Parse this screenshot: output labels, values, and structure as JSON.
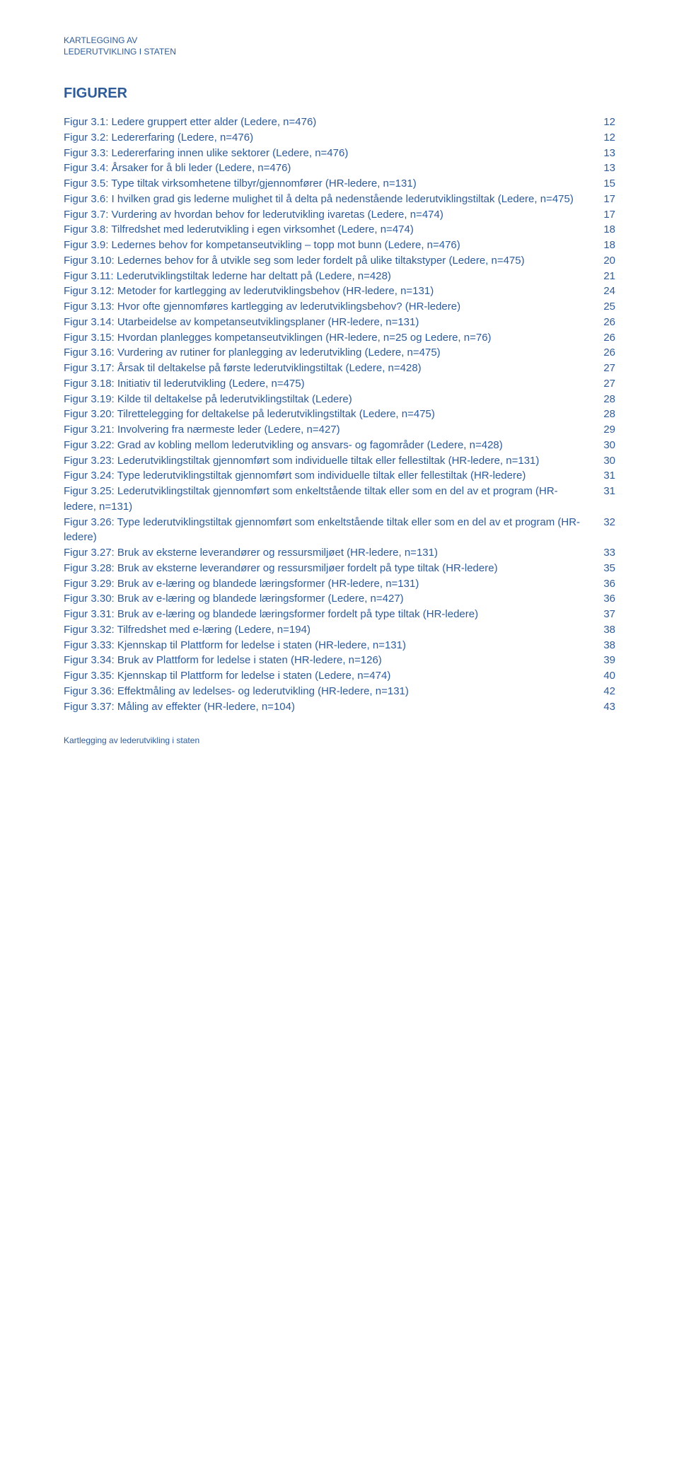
{
  "header": {
    "line1": "KARTLEGGING AV",
    "line2": "LEDERUTVIKLING I STATEN"
  },
  "title": "FIGURER",
  "entries": [
    {
      "text": "Figur 3.1: Ledere gruppert etter alder (Ledere, n=476)",
      "page": "12"
    },
    {
      "text": "Figur 3.2: Ledererfaring (Ledere, n=476)",
      "page": "12"
    },
    {
      "text": "Figur 3.3: Ledererfaring innen ulike sektorer (Ledere, n=476)",
      "page": "13"
    },
    {
      "text": "Figur 3.4: Årsaker for å bli leder (Ledere, n=476)",
      "page": "13"
    },
    {
      "text": "Figur 3.5: Type tiltak virksomhetene tilbyr/gjennomfører (HR-ledere, n=131)",
      "page": "15"
    },
    {
      "text": "Figur 3.6: I hvilken grad gis lederne mulighet til å delta på nedenstående lederutviklingstiltak (Ledere, n=475)",
      "page": "17"
    },
    {
      "text": "Figur 3.7: Vurdering av hvordan behov for lederutvikling ivaretas (Ledere, n=474)",
      "page": "17"
    },
    {
      "text": "Figur 3.8: Tilfredshet med lederutvikling i egen virksomhet (Ledere, n=474)",
      "page": "18"
    },
    {
      "text": "Figur 3.9: Ledernes behov for kompetanseutvikling – topp mot bunn (Ledere, n=476)",
      "page": "18"
    },
    {
      "text": "Figur 3.10: Ledernes behov for å utvikle seg som leder fordelt på ulike tiltakstyper (Ledere, n=475)",
      "page": "20"
    },
    {
      "text": "Figur 3.11: Lederutviklingstiltak lederne har deltatt på (Ledere, n=428)",
      "page": "21"
    },
    {
      "text": "Figur 3.12: Metoder for kartlegging av lederutviklingsbehov (HR-ledere, n=131)",
      "page": "24"
    },
    {
      "text": "Figur 3.13: Hvor ofte gjennomføres kartlegging av lederutviklingsbehov? (HR-ledere)",
      "page": "25"
    },
    {
      "text": "Figur 3.14: Utarbeidelse av kompetanseutviklingsplaner (HR-ledere, n=131)",
      "page": "26"
    },
    {
      "text": "Figur 3.15: Hvordan planlegges kompetanseutviklingen (HR-ledere, n=25 og Ledere, n=76)",
      "page": "26"
    },
    {
      "text": "Figur 3.16: Vurdering av rutiner for planlegging av lederutvikling (Ledere, n=475)",
      "page": "26"
    },
    {
      "text": "Figur 3.17: Årsak til deltakelse på første lederutviklingstiltak (Ledere, n=428)",
      "page": "27"
    },
    {
      "text": "Figur 3.18: Initiativ til lederutvikling (Ledere, n=475)",
      "page": "27"
    },
    {
      "text": "Figur 3.19: Kilde til deltakelse på lederutviklingstiltak (Ledere)",
      "page": "28"
    },
    {
      "text": "Figur 3.20: Tilrettelegging for deltakelse på lederutviklingstiltak (Ledere, n=475)",
      "page": "28"
    },
    {
      "text": "Figur 3.21: Involvering fra nærmeste leder (Ledere, n=427)",
      "page": "29"
    },
    {
      "text": "Figur 3.22: Grad av kobling mellom lederutvikling og ansvars- og fagområder (Ledere, n=428)",
      "page": "30"
    },
    {
      "text": "Figur 3.23: Lederutviklingstiltak gjennomført som individuelle tiltak eller fellestiltak (HR-ledere, n=131)",
      "page": "30"
    },
    {
      "text": "Figur 3.24: Type lederutviklingstiltak gjennomført som individuelle tiltak eller fellestiltak (HR-ledere)",
      "page": "31"
    },
    {
      "text": "Figur 3.25: Lederutviklingstiltak gjennomført som enkeltstående tiltak eller som en del av et program (HR-ledere, n=131)",
      "page": "31"
    },
    {
      "text": "Figur 3.26: Type lederutviklingstiltak gjennomført som enkeltstående tiltak eller som en del av et program (HR-ledere)",
      "page": "32"
    },
    {
      "text": "Figur 3.27: Bruk av eksterne leverandører og ressursmiljøet (HR-ledere, n=131)",
      "page": "33"
    },
    {
      "text": "Figur 3.28: Bruk av eksterne leverandører og ressursmiljøer fordelt på type tiltak (HR-ledere)",
      "page": "35"
    },
    {
      "text": "Figur 3.29: Bruk av e-læring og blandede læringsformer (HR-ledere, n=131)",
      "page": "36"
    },
    {
      "text": "Figur 3.30: Bruk av e-læring og blandede læringsformer (Ledere, n=427)",
      "page": "36"
    },
    {
      "text": "Figur 3.31: Bruk av e-læring og blandede læringsformer fordelt på type tiltak (HR-ledere)",
      "page": "37"
    },
    {
      "text": "Figur 3.32: Tilfredshet med e-læring (Ledere, n=194)",
      "page": "38"
    },
    {
      "text": "Figur 3.33: Kjennskap til Plattform for ledelse i staten (HR-ledere, n=131)",
      "page": "38"
    },
    {
      "text": "Figur 3.34: Bruk av Plattform for ledelse i staten (HR-ledere, n=126)",
      "page": "39"
    },
    {
      "text": "Figur 3.35: Kjennskap til Plattform for ledelse i staten (Ledere, n=474)",
      "page": "40"
    },
    {
      "text": "Figur 3.36: Effektmåling av ledelses- og lederutvikling (HR-ledere, n=131)",
      "page": "42"
    },
    {
      "text": "Figur 3.37: Måling av effekter (HR-ledere, n=104)",
      "page": "43"
    }
  ],
  "footer": "Kartlegging av lederutvikling i staten",
  "colors": {
    "text": "#2e5c9a",
    "background": "#ffffff"
  },
  "typography": {
    "body_fontsize": 15,
    "header_fontsize": 12,
    "title_fontsize": 20,
    "footer_fontsize": 12,
    "font_family": "Verdana"
  }
}
